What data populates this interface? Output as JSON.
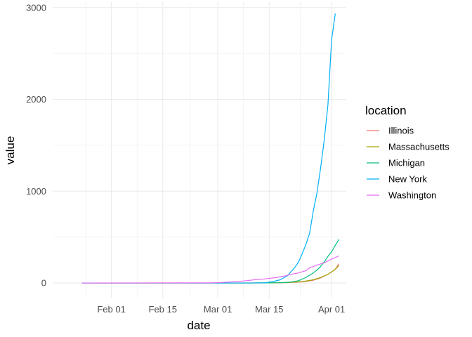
{
  "chart_data": {
    "type": "line",
    "xlabel": "date",
    "ylabel": "value",
    "legend_title": "location",
    "legend_position": "right",
    "grid": true,
    "xlim": [
      "2020-01-16",
      "2020-04-05"
    ],
    "ylim": [
      -160,
      3060
    ],
    "x_ticks": [
      {
        "value": "2020-02-01",
        "label": "Feb 01"
      },
      {
        "value": "2020-02-15",
        "label": "Feb 15"
      },
      {
        "value": "2020-03-01",
        "label": "Mar 01"
      },
      {
        "value": "2020-03-15",
        "label": "Mar 15"
      },
      {
        "value": "2020-04-01",
        "label": "Apr 01"
      }
    ],
    "y_ticks": [
      {
        "value": 0,
        "label": "0"
      },
      {
        "value": 1000,
        "label": "1000"
      },
      {
        "value": 2000,
        "label": "2000"
      },
      {
        "value": 3000,
        "label": "3000"
      }
    ],
    "series": [
      {
        "name": "Illinois",
        "color": "#F8766D",
        "points": [
          [
            "2020-01-24",
            0
          ],
          [
            "2020-03-01",
            0
          ],
          [
            "2020-03-14",
            1
          ],
          [
            "2020-03-20",
            4
          ],
          [
            "2020-03-24",
            12
          ],
          [
            "2020-03-27",
            30
          ],
          [
            "2020-03-29",
            55
          ],
          [
            "2020-03-31",
            95
          ],
          [
            "2020-04-01",
            120
          ],
          [
            "2020-04-02",
            150
          ],
          [
            "2020-04-03",
            210
          ]
        ]
      },
      {
        "name": "Massachusetts",
        "color": "#A3A500",
        "points": [
          [
            "2020-01-24",
            0
          ],
          [
            "2020-03-01",
            0
          ],
          [
            "2020-03-15",
            1
          ],
          [
            "2020-03-20",
            5
          ],
          [
            "2020-03-24",
            15
          ],
          [
            "2020-03-27",
            35
          ],
          [
            "2020-03-29",
            60
          ],
          [
            "2020-03-31",
            95
          ],
          [
            "2020-04-01",
            120
          ],
          [
            "2020-04-02",
            150
          ],
          [
            "2020-04-03",
            190
          ]
        ]
      },
      {
        "name": "Michigan",
        "color": "#00BF7D",
        "points": [
          [
            "2020-01-24",
            0
          ],
          [
            "2020-03-10",
            0
          ],
          [
            "2020-03-18",
            3
          ],
          [
            "2020-03-21",
            10
          ],
          [
            "2020-03-23",
            25
          ],
          [
            "2020-03-25",
            60
          ],
          [
            "2020-03-27",
            110
          ],
          [
            "2020-03-28",
            140
          ],
          [
            "2020-03-29",
            180
          ],
          [
            "2020-03-30",
            230
          ],
          [
            "2020-03-31",
            290
          ],
          [
            "2020-04-01",
            340
          ],
          [
            "2020-04-02",
            410
          ],
          [
            "2020-04-03",
            475
          ]
        ]
      },
      {
        "name": "New York",
        "color": "#00B0F6",
        "points": [
          [
            "2020-01-24",
            0
          ],
          [
            "2020-03-10",
            0
          ],
          [
            "2020-03-14",
            3
          ],
          [
            "2020-03-16",
            15
          ],
          [
            "2020-03-18",
            35
          ],
          [
            "2020-03-20",
            80
          ],
          [
            "2020-03-22",
            170
          ],
          [
            "2020-03-23",
            230
          ],
          [
            "2020-03-24",
            320
          ],
          [
            "2020-03-25",
            420
          ],
          [
            "2020-03-26",
            540
          ],
          [
            "2020-03-27",
            780
          ],
          [
            "2020-03-28",
            980
          ],
          [
            "2020-03-29",
            1250
          ],
          [
            "2020-03-30",
            1560
          ],
          [
            "2020-03-31",
            1940
          ],
          [
            "2020-04-01",
            2650
          ],
          [
            "2020-04-02",
            2935
          ]
        ]
      },
      {
        "name": "Washington",
        "color": "#E76BF3",
        "points": [
          [
            "2020-01-24",
            0
          ],
          [
            "2020-02-28",
            2
          ],
          [
            "2020-03-02",
            6
          ],
          [
            "2020-03-05",
            12
          ],
          [
            "2020-03-08",
            22
          ],
          [
            "2020-03-11",
            35
          ],
          [
            "2020-03-14",
            45
          ],
          [
            "2020-03-17",
            60
          ],
          [
            "2020-03-19",
            75
          ],
          [
            "2020-03-21",
            95
          ],
          [
            "2020-03-23",
            110
          ],
          [
            "2020-03-25",
            135
          ],
          [
            "2020-03-26",
            165
          ],
          [
            "2020-03-28",
            195
          ],
          [
            "2020-03-30",
            220
          ],
          [
            "2020-04-01",
            260
          ],
          [
            "2020-04-03",
            295
          ]
        ]
      }
    ]
  }
}
